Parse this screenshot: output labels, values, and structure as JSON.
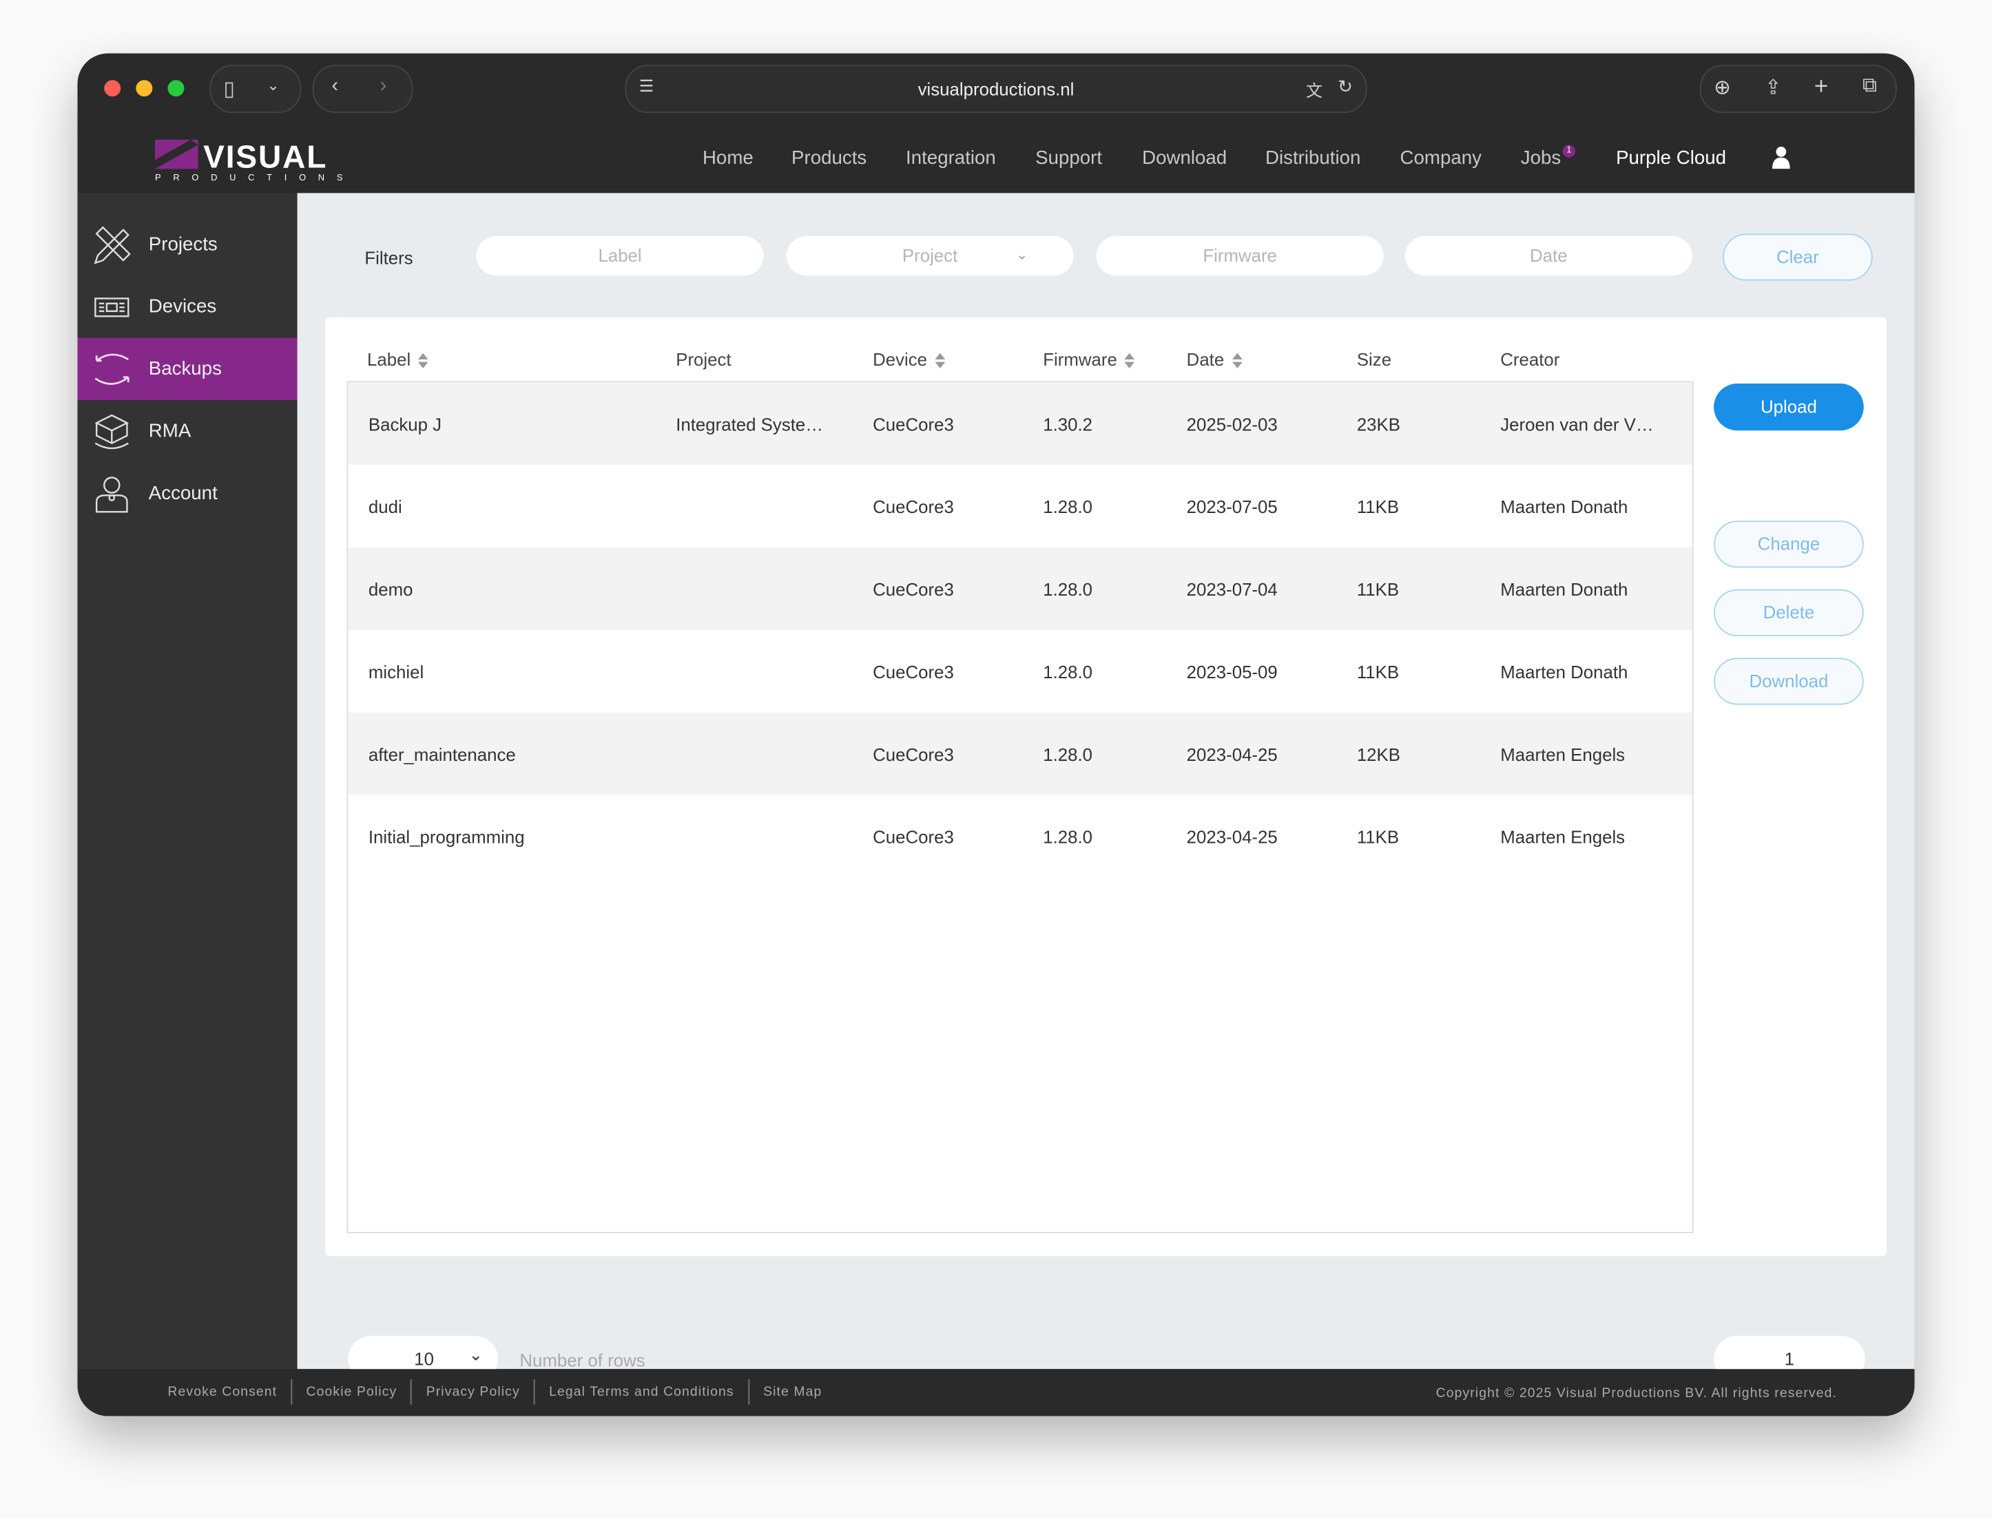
{
  "browser": {
    "url": "visualproductions.nl"
  },
  "brand": {
    "logo_text": "VISUAL",
    "logo_sub": "PRODUCTIONS",
    "accent": "#86288a"
  },
  "nav": {
    "items": [
      "Home",
      "Products",
      "Integration",
      "Support",
      "Download",
      "Distribution",
      "Company",
      "Jobs"
    ],
    "jobs_badge": "1",
    "active": "Purple Cloud"
  },
  "sidebar": {
    "items": [
      {
        "label": "Projects",
        "icon": "ruler-pencil-icon"
      },
      {
        "label": "Devices",
        "icon": "device-icon"
      },
      {
        "label": "Backups",
        "icon": "sync-icon"
      },
      {
        "label": "RMA",
        "icon": "box-return-icon"
      },
      {
        "label": "Account",
        "icon": "user-icon"
      }
    ],
    "active": "Backups"
  },
  "filters": {
    "title": "Filters",
    "label_ph": "Label",
    "project_ph": "Project",
    "firmware_ph": "Firmware",
    "date_ph": "Date",
    "clear": "Clear"
  },
  "table": {
    "columns": [
      "Label",
      "Project",
      "Device",
      "Firmware",
      "Date",
      "Size",
      "Creator"
    ],
    "rows": [
      [
        "Backup J",
        "Integrated Syste…",
        "CueCore3",
        "1.30.2",
        "2025-02-03",
        "23KB",
        "Jeroen van der V…"
      ],
      [
        "dudi",
        "",
        "CueCore3",
        "1.28.0",
        "2023-07-05",
        "11KB",
        "Maarten Donath"
      ],
      [
        "demo",
        "",
        "CueCore3",
        "1.28.0",
        "2023-07-04",
        "11KB",
        "Maarten Donath"
      ],
      [
        "michiel",
        "",
        "CueCore3",
        "1.28.0",
        "2023-05-09",
        "11KB",
        "Maarten Donath"
      ],
      [
        "after_maintenance",
        "",
        "CueCore3",
        "1.28.0",
        "2023-04-25",
        "12KB",
        "Maarten Engels"
      ],
      [
        "Initial_programming",
        "",
        "CueCore3",
        "1.28.0",
        "2023-04-25",
        "11KB",
        "Maarten Engels"
      ]
    ]
  },
  "actions": {
    "upload": "Upload",
    "change": "Change",
    "delete": "Delete",
    "download": "Download"
  },
  "pagination": {
    "rows_value": "10",
    "rows_label": "Number of rows",
    "page": "1"
  },
  "footer": {
    "links": [
      "Revoke Consent",
      "Cookie Policy",
      "Privacy Policy",
      "Legal Terms and Conditions",
      "Site Map"
    ],
    "copyright": "Copyright © 2025 Visual Productions BV. All rights reserved."
  }
}
